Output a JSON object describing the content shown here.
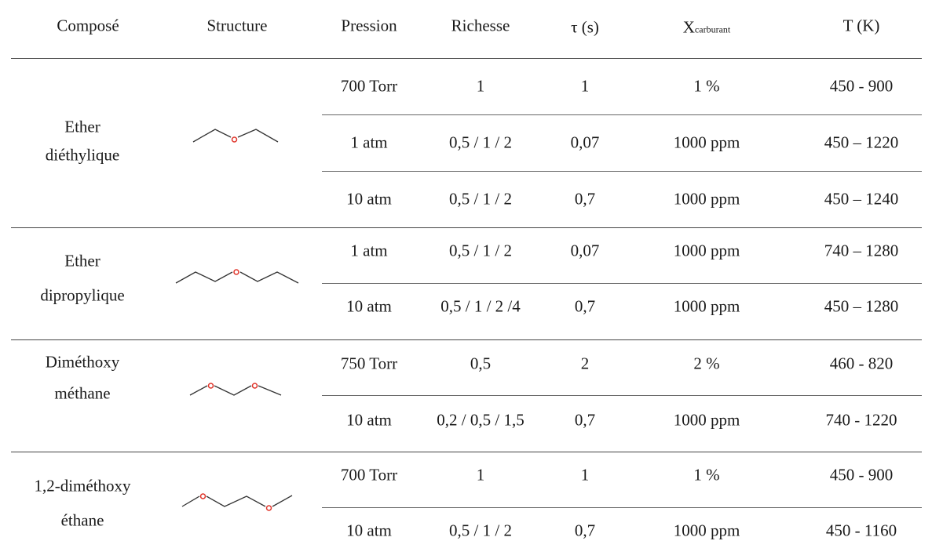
{
  "headers": {
    "compose": "Composé",
    "structure": "Structure",
    "pression": "Pression",
    "richesse": "Richesse",
    "tau": "τ (s)",
    "x_main": "X",
    "x_sub": "carburant",
    "temperature": "T (K)"
  },
  "compounds": [
    {
      "name_line1": "Ether",
      "name_line2": "diéthylique",
      "structure_icon": "diethyl-ether-skeletal-icon",
      "rows": [
        {
          "pression": "700 Torr",
          "richesse": "1",
          "tau": "1",
          "x": "1 %",
          "t": "450 - 900"
        },
        {
          "pression": "1 atm",
          "richesse": "0,5 / 1 / 2",
          "tau": "0,07",
          "x": "1000 ppm",
          "t": "450 – 1220"
        },
        {
          "pression": "10 atm",
          "richesse": "0,5 / 1 / 2",
          "tau": "0,7",
          "x": "1000 ppm",
          "t": "450 – 1240"
        }
      ]
    },
    {
      "name_line1": "Ether",
      "name_line2": "dipropylique",
      "structure_icon": "dipropyl-ether-skeletal-icon",
      "rows": [
        {
          "pression": "1 atm",
          "richesse": "0,5 / 1 / 2",
          "tau": "0,07",
          "x": "1000 ppm",
          "t": "740 – 1280"
        },
        {
          "pression": "10 atm",
          "richesse": "0,5 / 1 / 2 /4",
          "tau": "0,7",
          "x": "1000 ppm",
          "t": "450 – 1280"
        }
      ]
    },
    {
      "name_line1": "Diméthoxy",
      "name_line2": "méthane",
      "structure_icon": "dimethoxymethane-skeletal-icon",
      "rows": [
        {
          "pression": "750 Torr",
          "richesse": "0,5",
          "tau": "2",
          "x": "2 %",
          "t": "460 - 820"
        },
        {
          "pression": "10 atm",
          "richesse": "0,2 / 0,5 / 1,5",
          "tau": "0,7",
          "x": "1000 ppm",
          "t": "740 - 1220"
        }
      ]
    },
    {
      "name_line1": "1,2-diméthoxy",
      "name_line2": "éthane",
      "structure_icon": "dimethoxyethane-skeletal-icon",
      "rows": [
        {
          "pression": "700 Torr",
          "richesse": "1",
          "tau": "1",
          "x": "1 %",
          "t": "450 - 900"
        },
        {
          "pression": "10 atm",
          "richesse": "0,5 / 1 / 2",
          "tau": "0,7",
          "x": "1000 ppm",
          "t": "450 - 1160"
        }
      ]
    }
  ],
  "colors": {
    "oxygen_atom": "#e0352b",
    "bond": "#333333",
    "rule": "#444444"
  }
}
